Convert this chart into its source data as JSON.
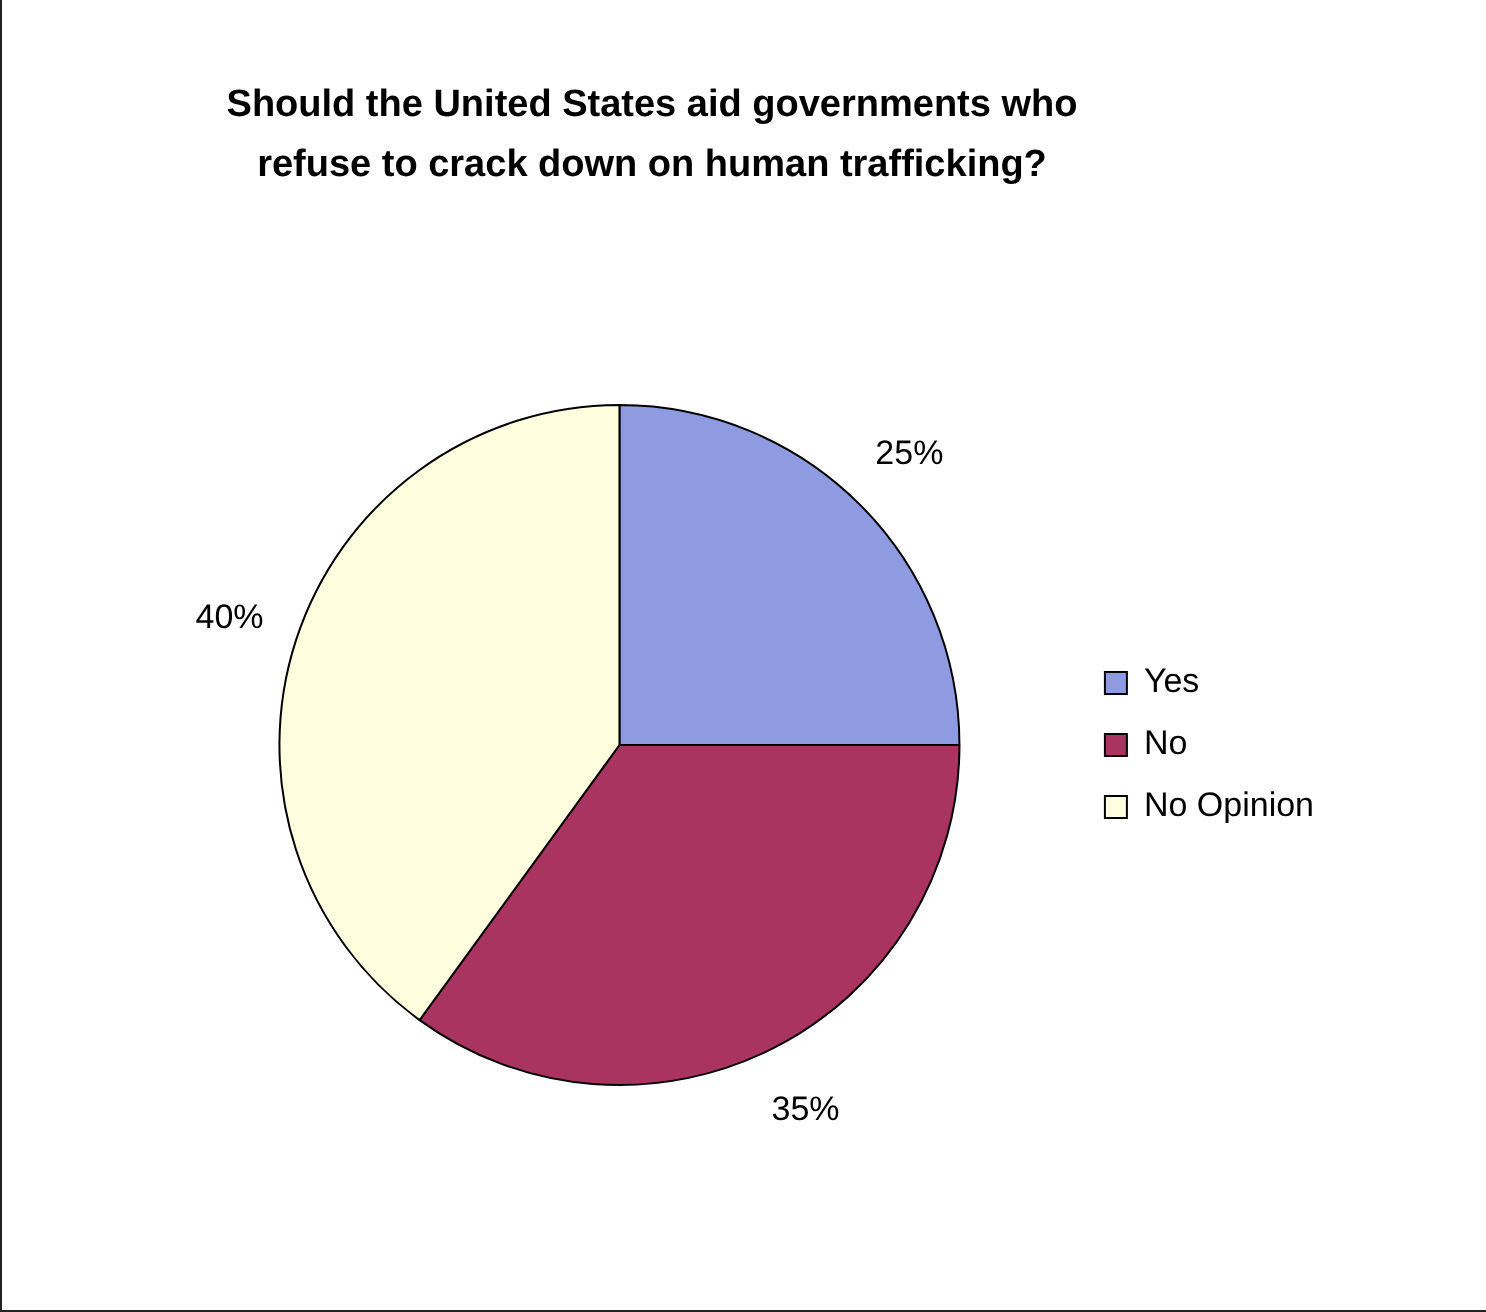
{
  "chart_data": {
    "type": "pie",
    "title": "Should the United States aid governments who refuse to crack down on human trafficking?",
    "categories": [
      "Yes",
      "No",
      "No Opinion"
    ],
    "values": [
      25,
      35,
      40
    ],
    "value_labels": [
      "25%",
      "35%",
      "40%"
    ],
    "colors": [
      "#8e9be0",
      "#a8345f",
      "#ffffe0"
    ],
    "legend": "right"
  }
}
